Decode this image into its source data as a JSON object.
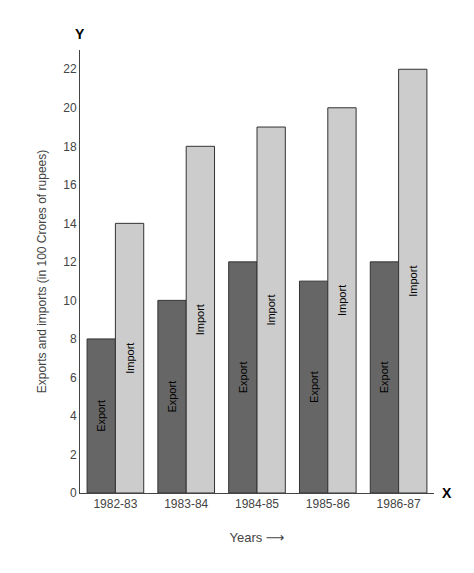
{
  "chart_data": {
    "type": "bar",
    "categories": [
      "1982-83",
      "1983-84",
      "1984-85",
      "1985-86",
      "1986-87"
    ],
    "series": [
      {
        "name": "Export",
        "color": "#666666",
        "values": [
          8,
          10,
          12,
          11,
          12
        ]
      },
      {
        "name": "Import",
        "color": "#cccccc",
        "values": [
          14,
          18,
          19,
          20,
          22
        ]
      }
    ],
    "xlabel": "Years ⟶",
    "ylabel": "Exports and imports (in 100 Crores of rupees)",
    "annotations": [
      {
        "text": "Y",
        "axis": "y"
      },
      {
        "text": "X",
        "axis": "x"
      }
    ],
    "ylim": [
      0,
      23
    ],
    "yticks": [
      0,
      2,
      4,
      6,
      8,
      10,
      12,
      14,
      16,
      18,
      20,
      22
    ],
    "grid": false
  }
}
